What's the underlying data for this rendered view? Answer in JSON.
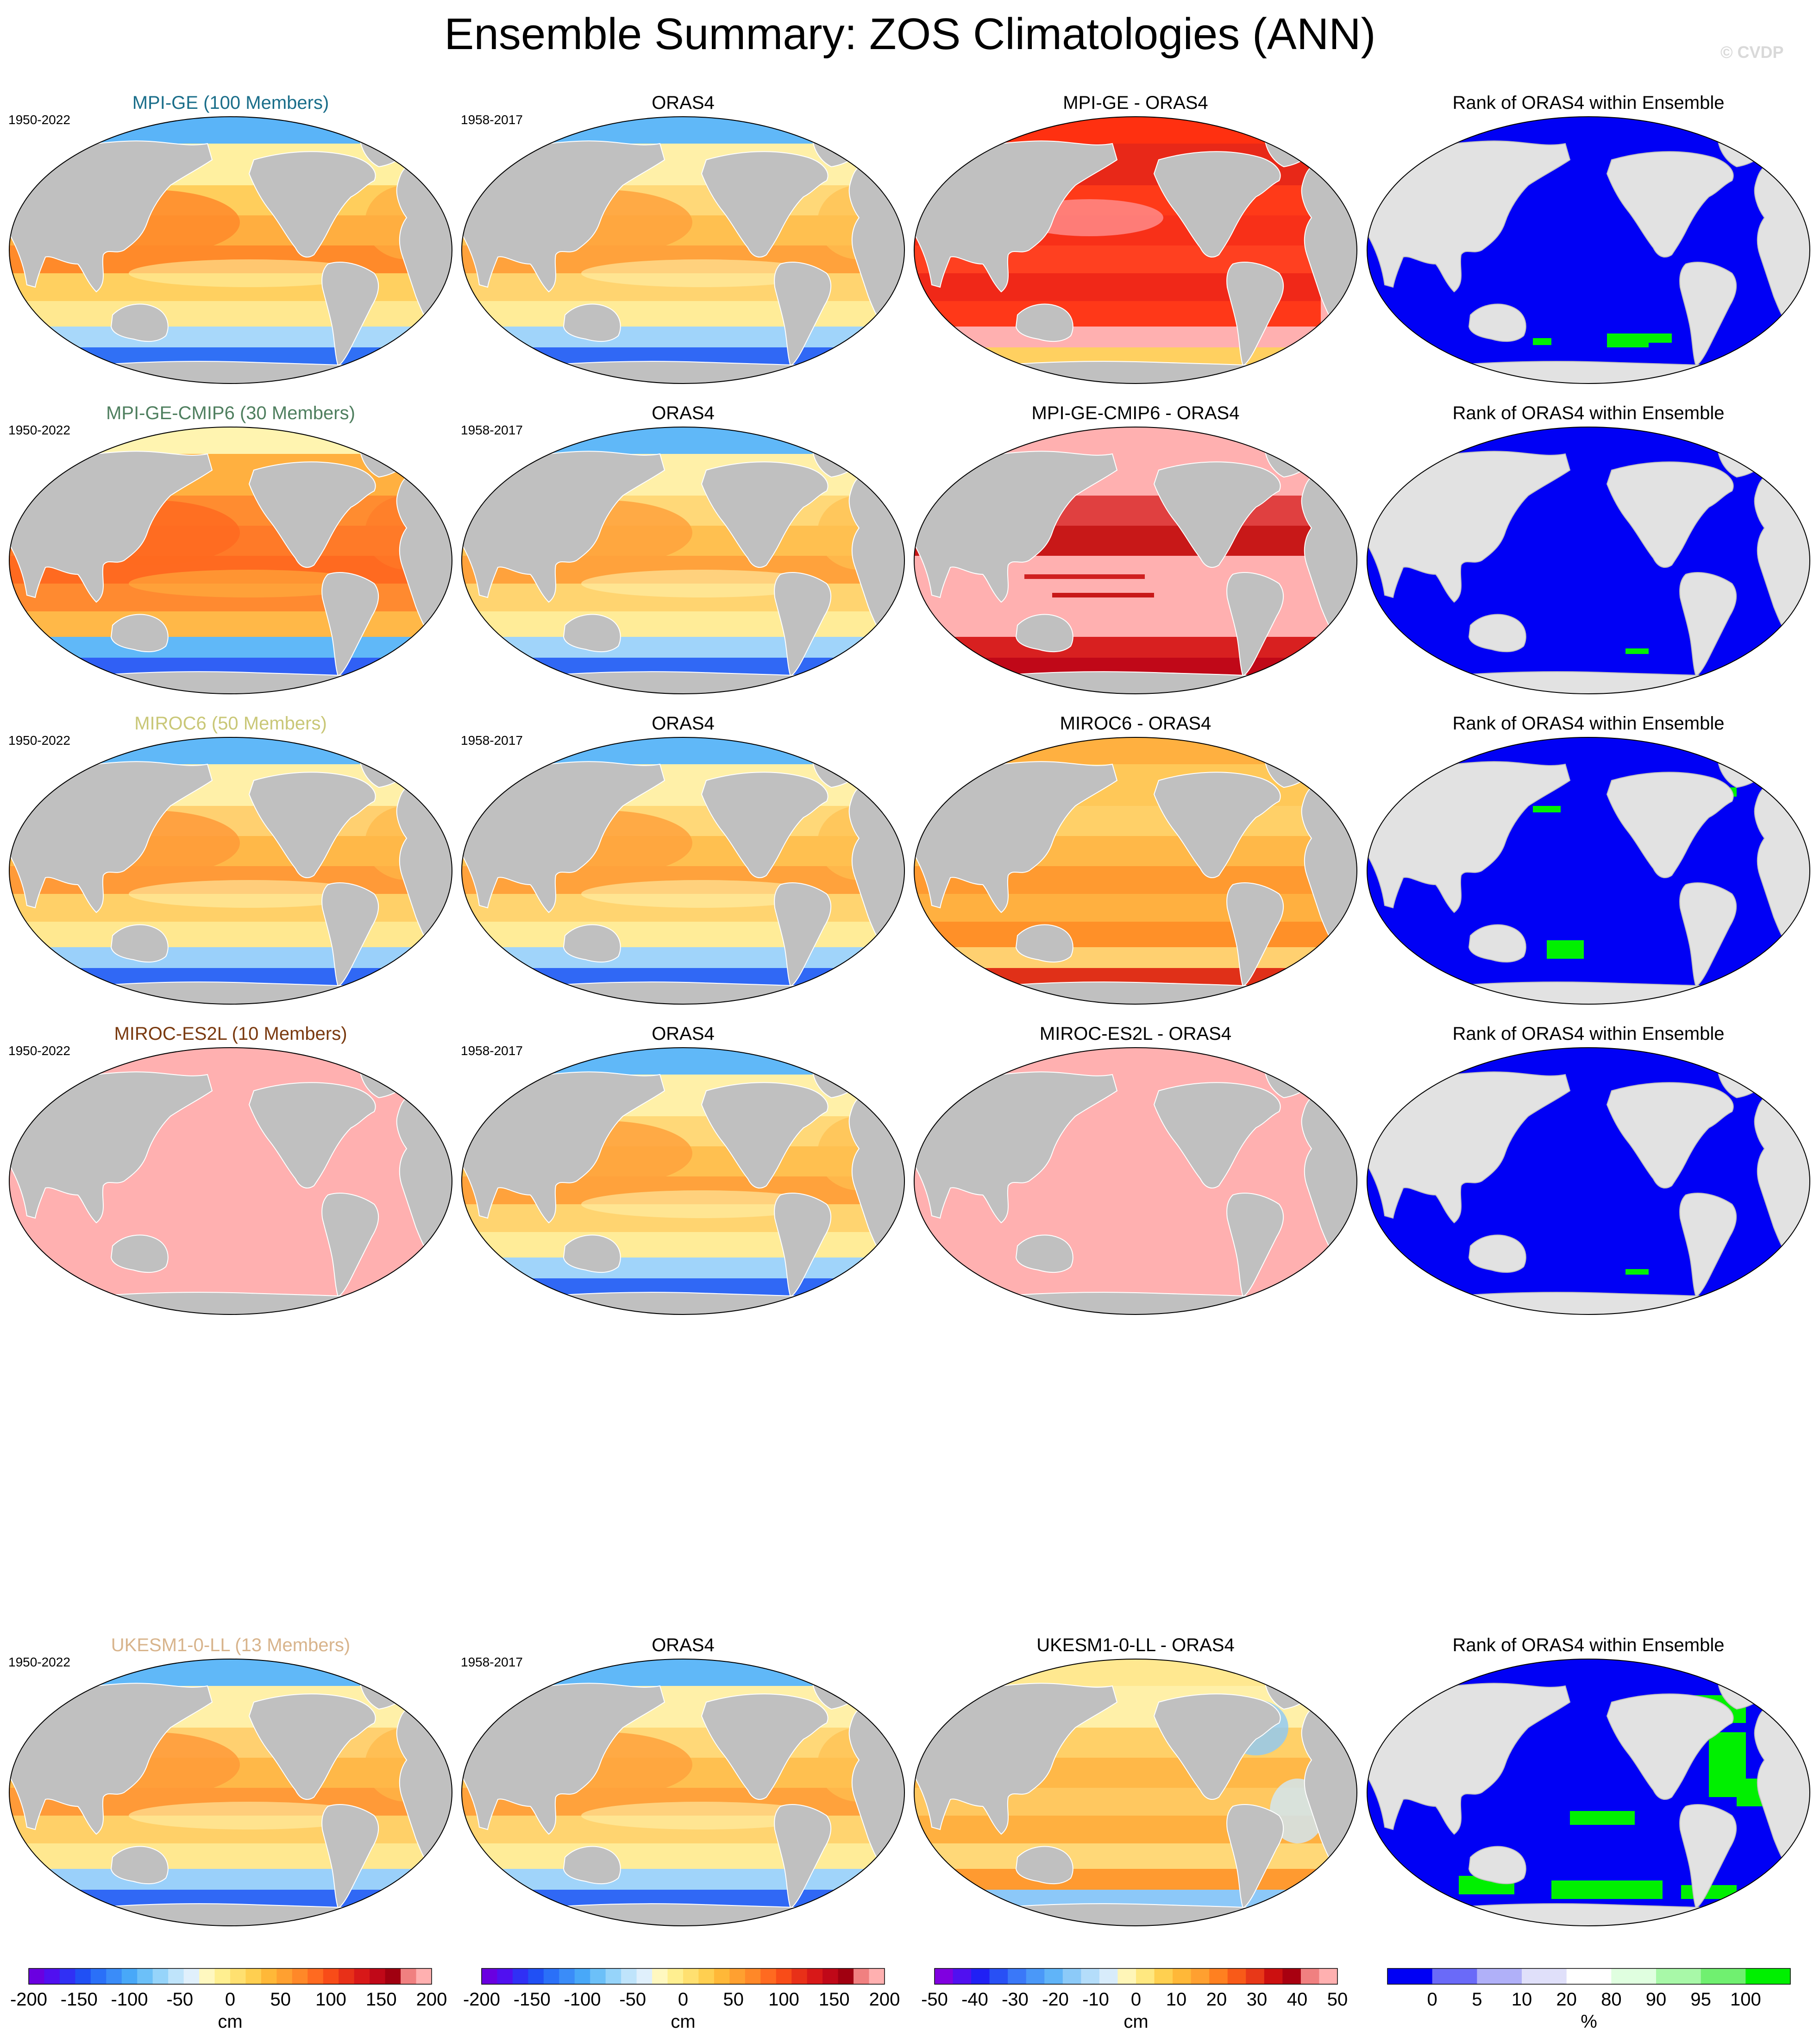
{
  "title": "Ensemble Summary: ZOS Climatologies (ANN)",
  "watermark": "© CVDP",
  "colors": {
    "land": "#c0c0c0",
    "rank_land": "#e2e2e2",
    "rank_ocean": "#0000f5",
    "rank_high": "#00f000",
    "diff_pink": "#ffb0b0"
  },
  "chart_data": {
    "type": "heatmap",
    "variable": "ZOS",
    "season": "ANN",
    "rows": [
      {
        "ensemble": {
          "title": "MPI-GE (100 Members)",
          "title_color": "#1a6e8a",
          "period": "1950-2022",
          "scheme": "ensemble-a"
        },
        "observation": {
          "title": "ORAS4",
          "period": "1958-2017"
        },
        "difference": {
          "title": "MPI-GE - ORAS4",
          "scheme": "diff-red"
        },
        "rank": {
          "title": "Rank of ORAS4 within Ensemble",
          "green": "low"
        }
      },
      {
        "ensemble": {
          "title": "MPI-GE-CMIP6 (30 Members)",
          "title_color": "#4f7f5f",
          "period": "1950-2022",
          "scheme": "ensemble-b"
        },
        "observation": {
          "title": "ORAS4",
          "period": "1958-2017"
        },
        "difference": {
          "title": "MPI-GE-CMIP6 - ORAS4",
          "scheme": "diff-pink"
        },
        "rank": {
          "title": "Rank of ORAS4 within Ensemble",
          "green": "tiny"
        }
      },
      {
        "ensemble": {
          "title": "MIROC6 (50 Members)",
          "title_color": "#c9c777",
          "period": "1950-2022",
          "scheme": "ensemble-c"
        },
        "observation": {
          "title": "ORAS4",
          "period": "1958-2017"
        },
        "difference": {
          "title": "MIROC6 - ORAS4",
          "scheme": "diff-orange"
        },
        "rank": {
          "title": "Rank of ORAS4 within Ensemble",
          "green": "some"
        }
      },
      {
        "ensemble": {
          "title": "MIROC-ES2L (10 Members)",
          "title_color": "#7a3a10",
          "period": "1950-2022",
          "scheme": "pink"
        },
        "observation": {
          "title": "ORAS4",
          "period": "1958-2017"
        },
        "difference": {
          "title": "MIROC-ES2L - ORAS4",
          "scheme": "pink"
        },
        "rank": {
          "title": "Rank of ORAS4 within Ensemble",
          "green": "tiny"
        }
      },
      {
        "ensemble": {
          "title": "UKESM1-0-LL (13 Members)",
          "title_color": "#d8b48c",
          "period": "1950-2022",
          "scheme": "ensemble-c"
        },
        "observation": {
          "title": "ORAS4",
          "period": "1958-2017"
        },
        "difference": {
          "title": "UKESM1-0-LL - ORAS4",
          "scheme": "diff-mixed"
        },
        "rank": {
          "title": "Rank of ORAS4 within Ensemble",
          "green": "many"
        }
      }
    ],
    "colorbars": [
      {
        "unit": "cm",
        "ticks": [
          "-200",
          "-150",
          "-100",
          "-50",
          "0",
          "50",
          "100",
          "150",
          "200"
        ],
        "colors": [
          "#6a00e0",
          "#5010f0",
          "#3030f5",
          "#2050f5",
          "#2a70f8",
          "#3a8cf8",
          "#48a8f8",
          "#6cc0f8",
          "#96d4fa",
          "#bfe4fb",
          "#e0f0fc",
          "#fff8c0",
          "#ffef90",
          "#ffe070",
          "#ffcf50",
          "#ffb838",
          "#ffa030",
          "#ff8828",
          "#ff6a20",
          "#f84c18",
          "#e83018",
          "#d81818",
          "#c00818",
          "#a00010",
          "#f08080",
          "#ffb0b0"
        ]
      },
      {
        "unit": "cm",
        "ticks": [
          "-200",
          "-150",
          "-100",
          "-50",
          "0",
          "50",
          "100",
          "150",
          "200"
        ],
        "colors": [
          "#6a00e0",
          "#5010f0",
          "#3030f5",
          "#2050f5",
          "#2a70f8",
          "#3a8cf8",
          "#48a8f8",
          "#6cc0f8",
          "#96d4fa",
          "#bfe4fb",
          "#e0f0fc",
          "#fff8c0",
          "#ffef90",
          "#ffe070",
          "#ffcf50",
          "#ffb838",
          "#ffa030",
          "#ff8828",
          "#ff6a20",
          "#f84c18",
          "#e83018",
          "#d81818",
          "#c00818",
          "#a00010",
          "#f08080",
          "#ffb0b0"
        ]
      },
      {
        "unit": "cm",
        "ticks": [
          "-50",
          "-40",
          "-30",
          "-20",
          "-10",
          "0",
          "10",
          "20",
          "30",
          "40",
          "50"
        ],
        "colors": [
          "#8000e0",
          "#5010f0",
          "#2020f5",
          "#2850f5",
          "#3a78f8",
          "#4a98f8",
          "#60b4f8",
          "#8ccaf8",
          "#b4ddfa",
          "#d8ecfb",
          "#fff6b8",
          "#ffe880",
          "#ffd050",
          "#ffb838",
          "#ffa030",
          "#ff8020",
          "#f85a18",
          "#e83818",
          "#cc1010",
          "#a80010",
          "#f08080",
          "#ffb0b0"
        ]
      },
      {
        "unit": "%",
        "ticks": [
          "0",
          "5",
          "10",
          "20",
          "80",
          "90",
          "95",
          "100"
        ],
        "colors": [
          "#0000f5",
          "#6a6af8",
          "#b0b0f8",
          "#e0e0fa",
          "#ffffff",
          "#e0ffe0",
          "#a8f8a8",
          "#70f070",
          "#00f000"
        ]
      }
    ]
  }
}
